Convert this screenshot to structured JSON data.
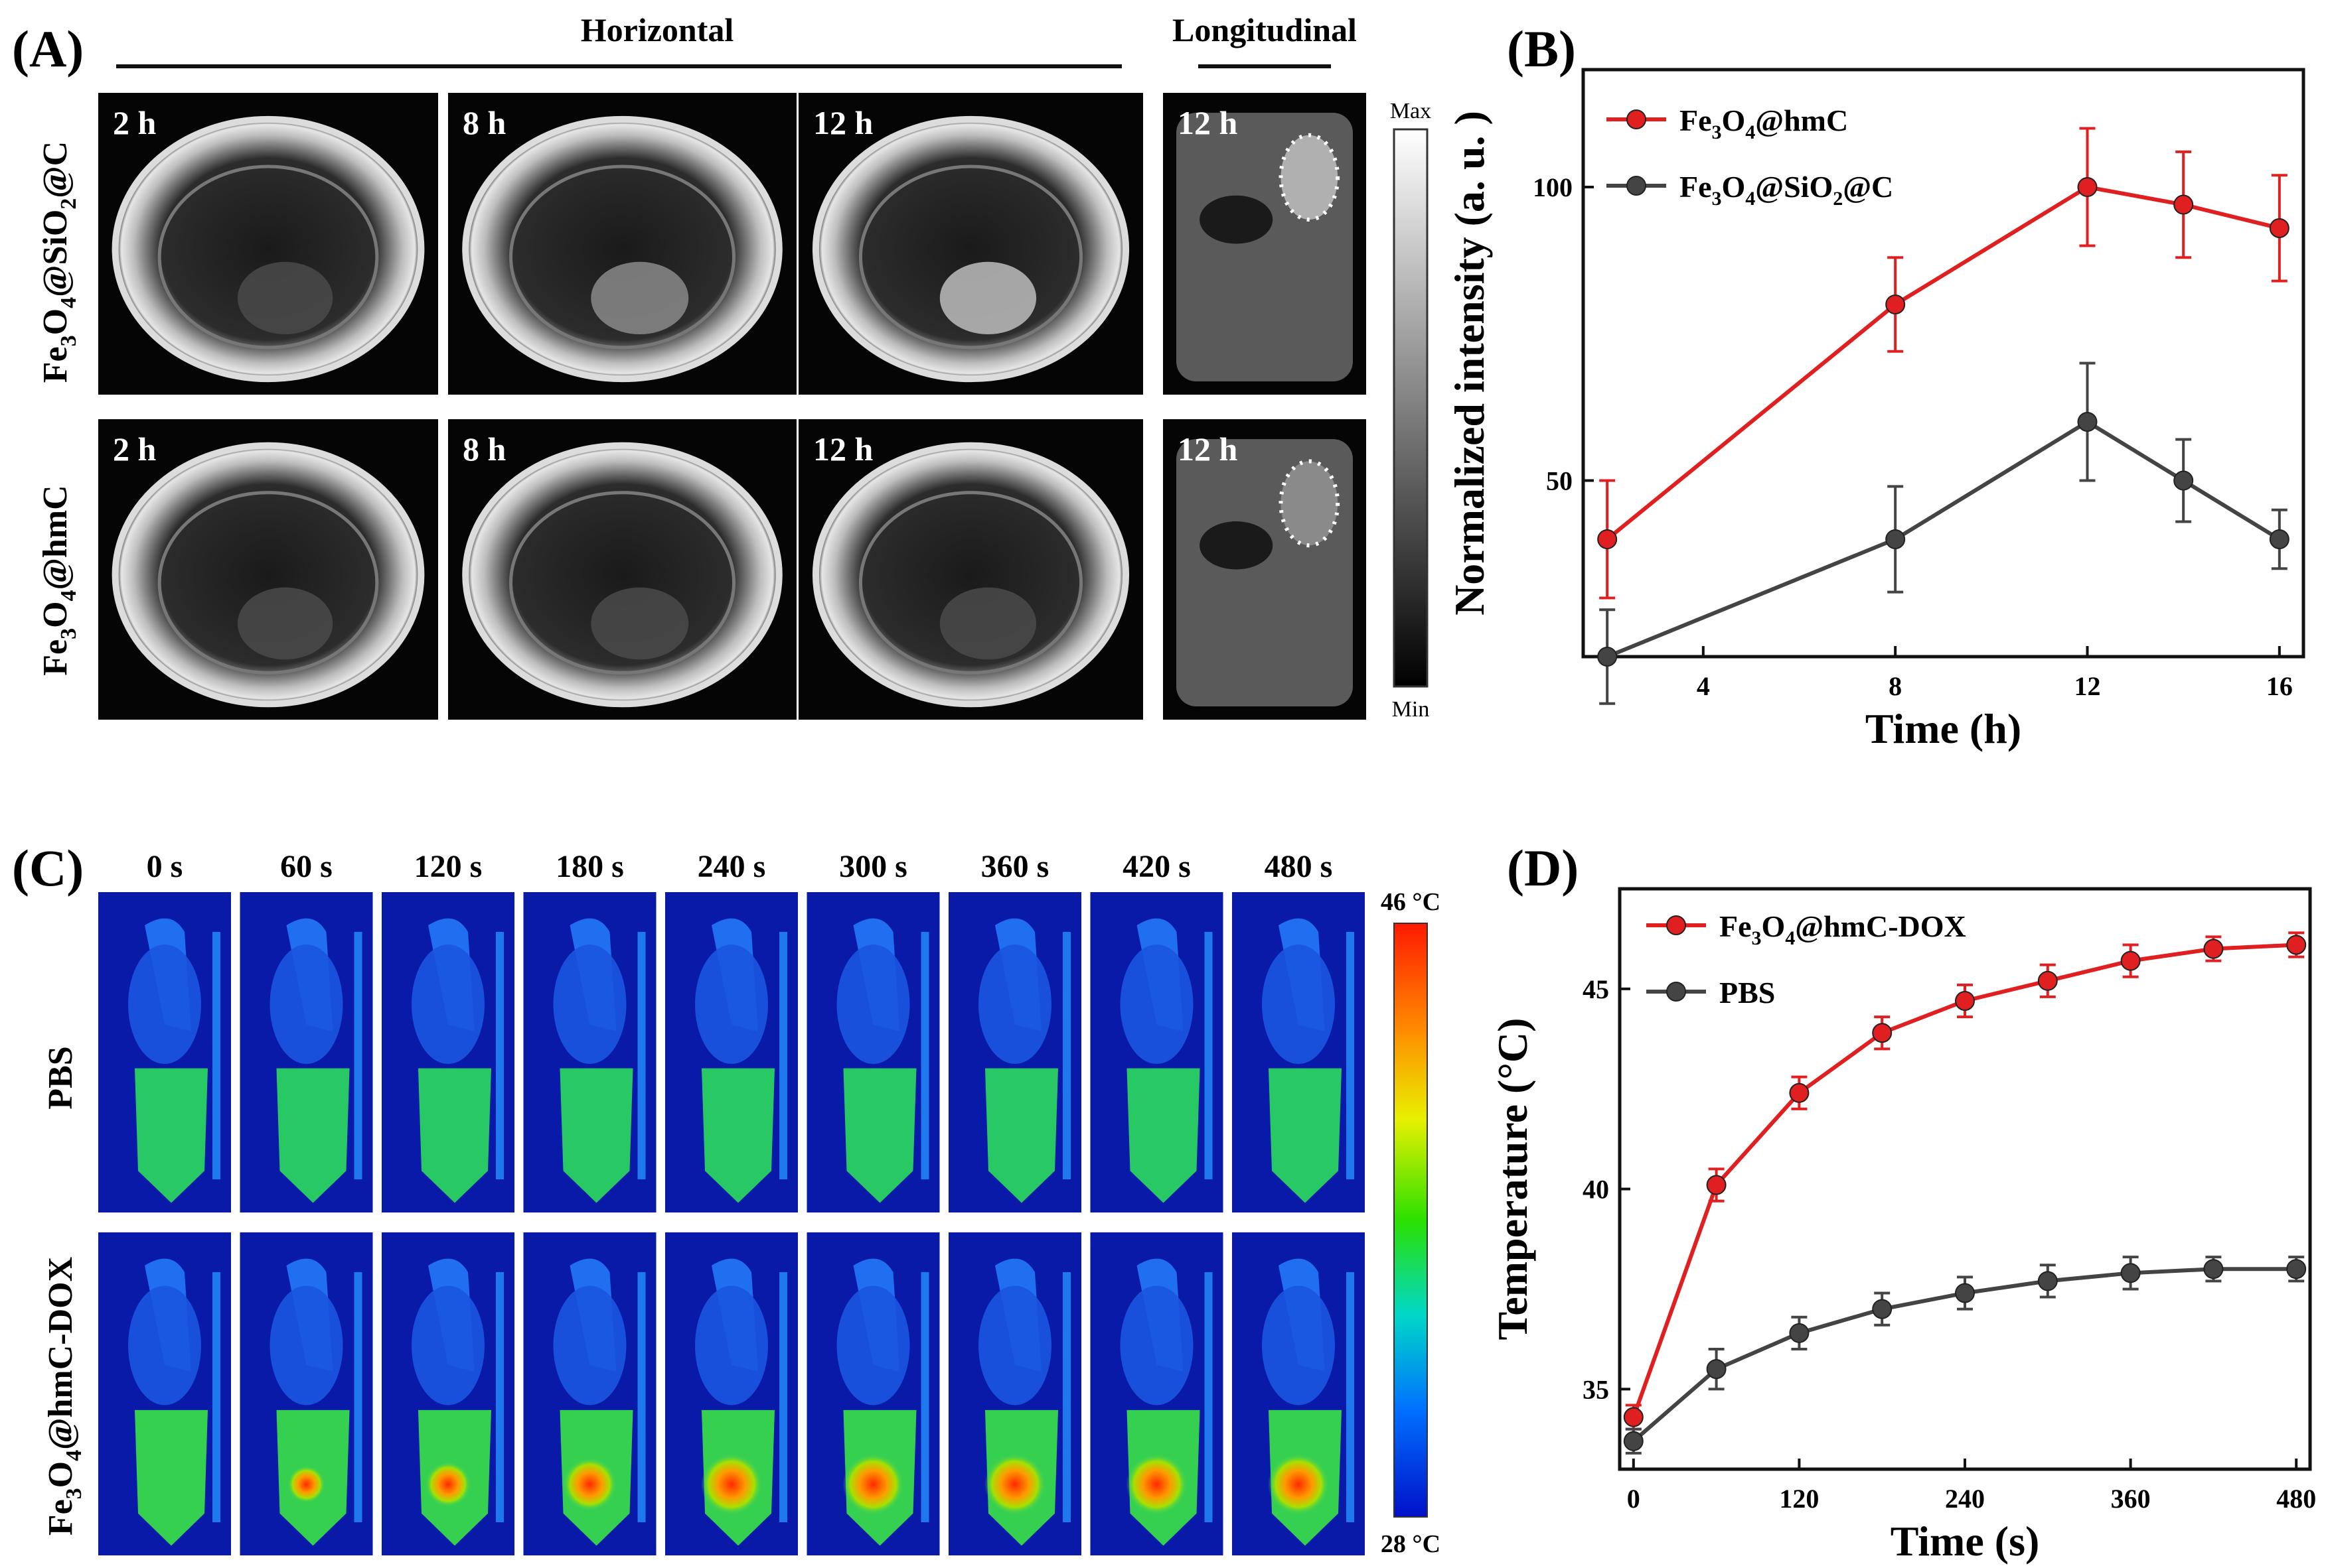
{
  "panel_a": {
    "label": "(A)",
    "header_horizontal": "Horizontal",
    "header_longitudinal": "Longitudinal",
    "time_labels": [
      "2 h",
      "8 h",
      "12 h",
      "12 h"
    ],
    "row_labels": [
      {
        "base": "Fe",
        "s1": "3",
        "mid": "O",
        "s2": "4",
        "tail": "@SiO",
        "s3": "2",
        "end": "@C"
      },
      {
        "base": "Fe",
        "s1": "3",
        "mid": "O",
        "s2": "4",
        "tail": "@hmC",
        "s3": "",
        "end": ""
      }
    ],
    "scale_max": "Max",
    "scale_min": "Min"
  },
  "panel_c": {
    "label": "(C)",
    "time_labels": [
      "0 s",
      "60 s",
      "120 s",
      "180 s",
      "240 s",
      "300 s",
      "360 s",
      "420 s",
      "480 s"
    ],
    "row_labels": [
      "PBS",
      "Fe3O4@hmC-DOX"
    ],
    "scale_max": "46 °C",
    "scale_min": "28 °C"
  },
  "colors": {
    "red_series": "#e02020",
    "gray_series": "#444444",
    "axis": "#111111"
  },
  "chart_data": [
    {
      "panel": "(B)",
      "type": "line",
      "title": "",
      "xlabel": "Time (h)",
      "ylabel": "Normalized intensity (a. u. )",
      "xlim": [
        1.5,
        16.5
      ],
      "ylim": [
        20,
        120
      ],
      "xticks": [
        4,
        8,
        12,
        16
      ],
      "yticks": [
        50,
        100
      ],
      "legend": "top-left",
      "series": [
        {
          "name": "Fe3O4@hmC",
          "color": "#e02020",
          "x": [
            2,
            8,
            12,
            14,
            16
          ],
          "y": [
            40,
            80,
            100,
            97,
            93
          ],
          "err": [
            10,
            8,
            10,
            9,
            9
          ]
        },
        {
          "name": "Fe3O4@SiO2@C",
          "color": "#444444",
          "x": [
            2,
            8,
            12,
            14,
            16
          ],
          "y": [
            20,
            40,
            60,
            50,
            40
          ],
          "err": [
            8,
            9,
            10,
            7,
            5
          ]
        }
      ]
    },
    {
      "panel": "(D)",
      "type": "line",
      "title": "",
      "xlabel": "Time (s)",
      "ylabel": "Temperature (°C)",
      "xlim": [
        -10,
        490
      ],
      "ylim": [
        33,
        47.5
      ],
      "xticks": [
        0,
        120,
        240,
        360,
        480
      ],
      "yticks": [
        35,
        40,
        45
      ],
      "legend": "top-left",
      "series": [
        {
          "name": "Fe3O4@hmC-DOX",
          "color": "#e02020",
          "x": [
            0,
            60,
            120,
            180,
            240,
            300,
            360,
            420,
            480
          ],
          "y": [
            34.3,
            40.1,
            42.4,
            43.9,
            44.7,
            45.2,
            45.7,
            46.0,
            46.1
          ],
          "err": [
            0.3,
            0.4,
            0.4,
            0.4,
            0.4,
            0.4,
            0.4,
            0.3,
            0.3
          ]
        },
        {
          "name": "PBS",
          "color": "#444444",
          "x": [
            0,
            60,
            120,
            180,
            240,
            300,
            360,
            420,
            480
          ],
          "y": [
            33.7,
            35.5,
            36.4,
            37.0,
            37.4,
            37.7,
            37.9,
            38.0,
            38.0
          ],
          "err": [
            0.3,
            0.5,
            0.4,
            0.4,
            0.4,
            0.4,
            0.4,
            0.3,
            0.3
          ]
        }
      ]
    }
  ]
}
